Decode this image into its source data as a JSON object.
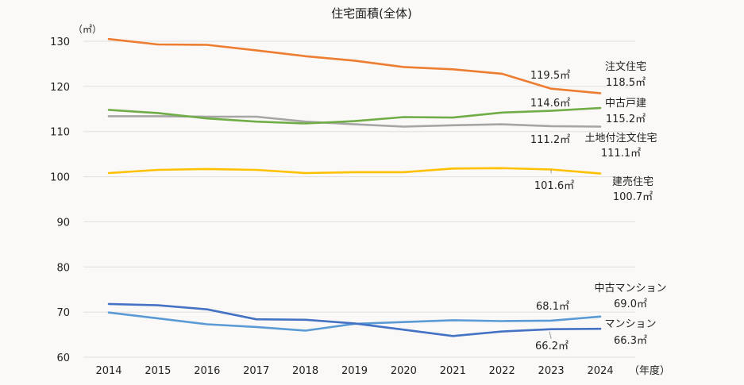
{
  "chart_data": {
    "type": "line",
    "title": "住宅面積(全体)",
    "ylabel": "（㎡）",
    "xlabel": "（年度）",
    "ylim": [
      60,
      130
    ],
    "yticks": [
      60,
      70,
      80,
      90,
      100,
      110,
      120,
      130
    ],
    "grid": true,
    "legend": "none (series labeled directly at right end)",
    "categories": [
      "2014",
      "2015",
      "2016",
      "2017",
      "2018",
      "2019",
      "2020",
      "2021",
      "2022",
      "2023",
      "2024"
    ],
    "series": [
      {
        "name": "注文住宅",
        "color": "#ed7d31",
        "values": [
          130.5,
          129.3,
          129.2,
          128.0,
          126.7,
          125.7,
          124.3,
          123.8,
          122.8,
          119.5,
          118.5
        ],
        "label_2023": "119.5㎡",
        "label_end": "118.5㎡"
      },
      {
        "name": "中古戸建",
        "color": "#70ad47",
        "values": [
          114.8,
          114.1,
          112.9,
          112.2,
          111.8,
          112.3,
          113.2,
          113.1,
          114.2,
          114.6,
          115.2
        ],
        "label_2023": "114.6㎡",
        "label_end": "115.2㎡"
      },
      {
        "name": "土地付注文住宅",
        "color": "#a5a5a5",
        "values": [
          113.4,
          113.4,
          113.3,
          113.3,
          112.2,
          111.6,
          111.1,
          111.4,
          111.6,
          111.2,
          111.1
        ],
        "label_2023": "111.2㎡",
        "label_end": "111.1㎡"
      },
      {
        "name": "建売住宅",
        "color": "#ffc000",
        "values": [
          100.8,
          101.5,
          101.7,
          101.5,
          100.8,
          101.0,
          101.0,
          101.8,
          101.9,
          101.6,
          100.7
        ],
        "label_2023": "101.6㎡",
        "label_end": "100.7㎡"
      },
      {
        "name": "中古マンション",
        "color": "#5b9bd5",
        "values": [
          69.9,
          68.6,
          67.3,
          66.7,
          65.9,
          67.4,
          67.8,
          68.2,
          68.0,
          68.1,
          69.0
        ],
        "label_2023": "68.1㎡",
        "label_end": "69.0㎡"
      },
      {
        "name": "マンション",
        "color": "#4472c4",
        "values": [
          71.8,
          71.5,
          70.6,
          68.4,
          68.3,
          67.5,
          66.1,
          64.7,
          65.7,
          66.2,
          66.3
        ],
        "label_2023": "66.2㎡",
        "label_end": "66.3㎡"
      }
    ]
  }
}
